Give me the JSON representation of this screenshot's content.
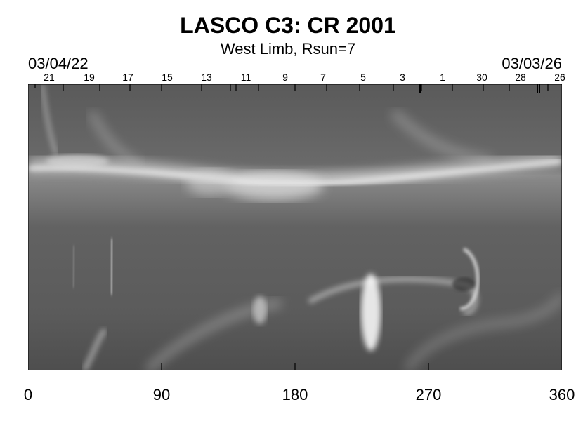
{
  "title": "LASCO C3: CR 2001",
  "subtitle": "West Limb, Rsun=7",
  "date_left": "03/04/22",
  "date_right": "03/03/26",
  "top_ticks": [
    "21",
    "19",
    "17",
    "15",
    "13",
    "11",
    "9",
    "7",
    "5",
    "3",
    "1",
    "30",
    "28",
    "26"
  ],
  "x_axis": [
    "0",
    "90",
    "180",
    "270",
    "360"
  ]
}
